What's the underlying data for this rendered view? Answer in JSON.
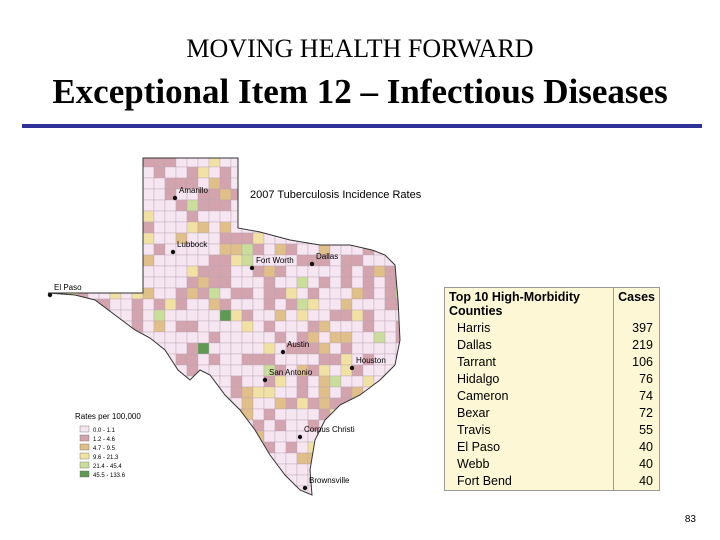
{
  "header": {
    "title": "MOVING HEALTH FORWARD",
    "subtitle": "Exceptional Item 12 – Infectious Diseases"
  },
  "map": {
    "title": "2007 Tuberculosis Incidence Rates",
    "cities": [
      "Amarillo",
      "Lubbock",
      "Fort Worth",
      "Dallas",
      "El Paso",
      "Austin",
      "Houston",
      "San Antonio",
      "Corpus Christi",
      "Brownsville"
    ]
  },
  "legend": {
    "title": "Rates per 100,000",
    "items": [
      {
        "label": "0.0 - 1.1",
        "color": "#f6e6f1"
      },
      {
        "label": "1.2 - 4.6",
        "color": "#d3a4ad"
      },
      {
        "label": "4.7 - 9.5",
        "color": "#e0bf88"
      },
      {
        "label": "9.6 - 21.3",
        "color": "#f1e2a4"
      },
      {
        "label": "21.4 - 45.4",
        "color": "#c9de9a"
      },
      {
        "label": "45.5 - 133.6",
        "color": "#5e9a52"
      }
    ]
  },
  "table": {
    "headers": [
      "Top 10 High-Morbidity Counties",
      "Cases"
    ],
    "rows": [
      [
        "Harris",
        "397"
      ],
      [
        "Dallas",
        "219"
      ],
      [
        "Tarrant",
        "106"
      ],
      [
        "Hidalgo",
        "76"
      ],
      [
        "Cameron",
        "74"
      ],
      [
        "Bexar",
        "72"
      ],
      [
        "Travis",
        "55"
      ],
      [
        "El Paso",
        "40"
      ],
      [
        "Webb",
        "40"
      ],
      [
        "Fort Bend",
        "40"
      ]
    ]
  },
  "page_number": "83"
}
